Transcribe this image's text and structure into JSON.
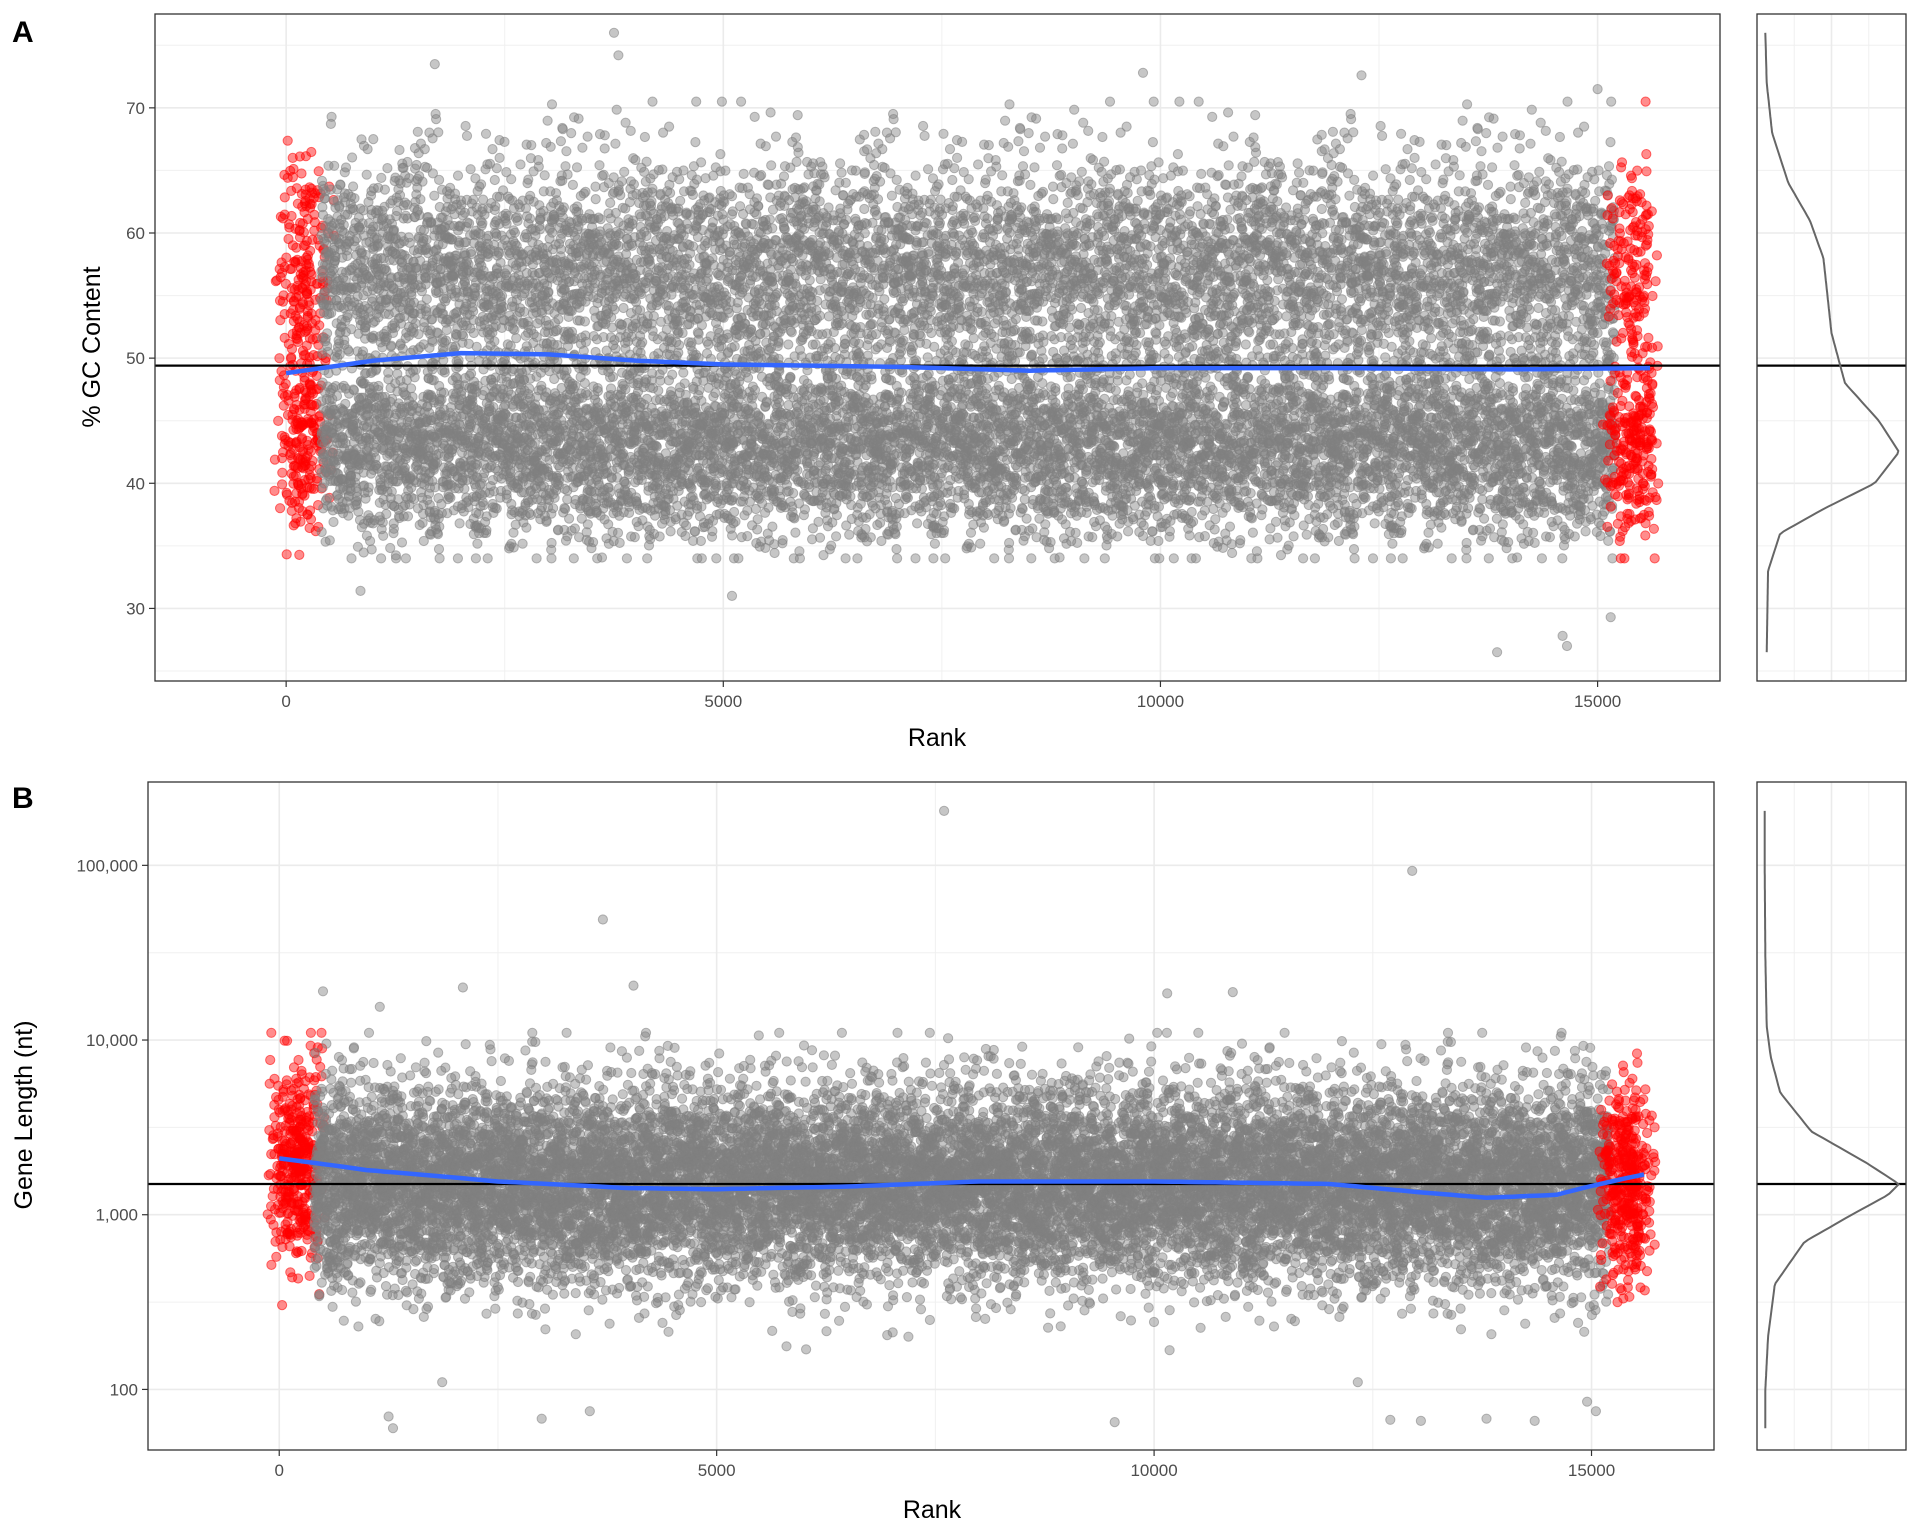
{
  "chart_data": [
    {
      "panel": "A",
      "type": "scatter",
      "xlabel": "Rank",
      "ylabel": "% GC Content",
      "xlim": [
        -1500,
        16400
      ],
      "ylim": [
        24.2,
        77.5
      ],
      "x_ticks": [
        0,
        5000,
        10000,
        15000
      ],
      "x_tick_labels": [
        "0",
        "5000",
        "10000",
        "15000"
      ],
      "y_ticks": [
        30,
        40,
        50,
        60,
        70
      ],
      "y_tick_labels": [
        "30",
        "40",
        "50",
        "60",
        "70"
      ],
      "grid": true,
      "n_points": 15600,
      "highlight_ranges": [
        [
          0,
          400
        ],
        [
          15200,
          15600
        ]
      ],
      "bulk_distribution": {
        "mode_low": 43,
        "mode_high": 57,
        "min": 26.5,
        "max": 76
      },
      "reference_line": 49.4,
      "smooth_fit": {
        "x": [
          0,
          1000,
          2000,
          3000,
          4000,
          5000,
          7000,
          8500,
          10000,
          12000,
          14000,
          15600
        ],
        "y": [
          48.8,
          49.8,
          50.4,
          50.3,
          49.8,
          49.5,
          49.3,
          49.0,
          49.2,
          49.2,
          49.1,
          49.2
        ]
      },
      "outliers": [
        {
          "x": 3750,
          "y": 76
        },
        {
          "x": 3800,
          "y": 74.2
        },
        {
          "x": 1700,
          "y": 73.5
        },
        {
          "x": 9800,
          "y": 72.8
        },
        {
          "x": 13850,
          "y": 26.5
        },
        {
          "x": 14600,
          "y": 27.8
        },
        {
          "x": 14650,
          "y": 27.0
        },
        {
          "x": 15150,
          "y": 29.3
        },
        {
          "x": 5100,
          "y": 31.0
        },
        {
          "x": 850,
          "y": 31.4
        },
        {
          "x": 12300,
          "y": 72.6
        },
        {
          "x": 15000,
          "y": 71.5
        }
      ],
      "colors": {
        "bulk": "#808080",
        "highlight": "#ff0000",
        "fit": "#3366ff",
        "reference": "#000000"
      },
      "marginal_density": {
        "y": [
          26.5,
          33,
          36,
          38,
          40,
          42.5,
          45,
          48,
          52,
          56,
          58,
          61,
          64,
          68,
          72,
          76
        ],
        "density": [
          0.02,
          0.03,
          0.12,
          0.45,
          0.82,
          1.0,
          0.85,
          0.6,
          0.5,
          0.46,
          0.44,
          0.34,
          0.18,
          0.06,
          0.02,
          0.01
        ]
      }
    },
    {
      "panel": "B",
      "type": "scatter",
      "xlabel": "Rank",
      "ylabel": "Gene Length (nt)",
      "yscale": "log10",
      "xlim": [
        -1500,
        16400
      ],
      "ylim": [
        45,
        300000
      ],
      "x_ticks": [
        0,
        5000,
        10000,
        15000
      ],
      "x_tick_labels": [
        "0",
        "5000",
        "10000",
        "15000"
      ],
      "y_ticks": [
        100,
        1000,
        10000,
        100000
      ],
      "y_tick_labels": [
        "100",
        "1,000",
        "10,000",
        "100,000"
      ],
      "grid": true,
      "n_points": 15600,
      "highlight_ranges": [
        [
          0,
          400
        ],
        [
          15200,
          15600
        ]
      ],
      "bulk_distribution": {
        "median": 1500,
        "log10_sd": 0.28,
        "min": 60,
        "max": 205000
      },
      "reference_line": 1500,
      "smooth_fit": {
        "x": [
          0,
          1000,
          2500,
          4000,
          5000,
          6500,
          8000,
          10000,
          12000,
          13000,
          13800,
          14600,
          15600
        ],
        "y": [
          2100,
          1800,
          1550,
          1420,
          1400,
          1450,
          1550,
          1550,
          1500,
          1350,
          1250,
          1300,
          1700
        ]
      },
      "outliers": [
        {
          "x": 7600,
          "y": 205000
        },
        {
          "x": 12950,
          "y": 93000
        },
        {
          "x": 3700,
          "y": 49000
        },
        {
          "x": 4050,
          "y": 20500
        },
        {
          "x": 2100,
          "y": 20000
        },
        {
          "x": 500,
          "y": 19000
        },
        {
          "x": 10150,
          "y": 18500
        },
        {
          "x": 10900,
          "y": 18800
        },
        {
          "x": 1150,
          "y": 15500
        },
        {
          "x": 9550,
          "y": 65
        },
        {
          "x": 1300,
          "y": 60
        },
        {
          "x": 1250,
          "y": 70
        },
        {
          "x": 3000,
          "y": 68
        },
        {
          "x": 3550,
          "y": 75
        },
        {
          "x": 13050,
          "y": 66
        },
        {
          "x": 12700,
          "y": 67
        },
        {
          "x": 14350,
          "y": 66
        },
        {
          "x": 13800,
          "y": 68
        },
        {
          "x": 15050,
          "y": 75
        },
        {
          "x": 14950,
          "y": 85
        }
      ],
      "colors": {
        "bulk": "#808080",
        "highlight": "#ff0000",
        "fit": "#3366ff",
        "reference": "#000000"
      },
      "marginal_density": {
        "y": [
          60,
          100,
          200,
          400,
          700,
          1000,
          1300,
          1500,
          2000,
          3000,
          5000,
          8000,
          12000,
          30000,
          100000,
          205000
        ],
        "density": [
          0.01,
          0.01,
          0.03,
          0.08,
          0.3,
          0.65,
          0.92,
          1.0,
          0.75,
          0.35,
          0.12,
          0.05,
          0.02,
          0.01,
          0.005,
          0.005
        ]
      }
    }
  ]
}
